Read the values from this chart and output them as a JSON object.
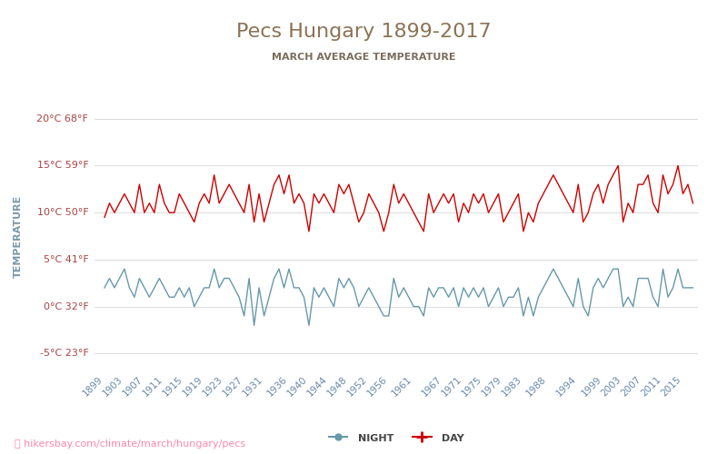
{
  "title": "Pecs Hungary 1899-2017",
  "subtitle": "MARCH AVERAGE TEMPERATURE",
  "ylabel": "TEMPERATURE",
  "watermark": "hikersbay.com/climate/march/hungary/pecs",
  "title_color": "#8B7355",
  "subtitle_color": "#7B6B5B",
  "day_color": "#CC0000",
  "night_color": "#6699AA",
  "background_color": "#FFFFFF",
  "grid_color": "#DDDDDD",
  "ylabel_color": "#7799AA",
  "tick_color": "#AA4444",
  "legend_day": "DAY",
  "legend_night": "NIGHT",
  "ylim": [
    -7,
    22
  ],
  "yticks_c": [
    -5,
    0,
    5,
    10,
    15,
    20
  ],
  "yticks_f": [
    23,
    32,
    41,
    50,
    59,
    68
  ],
  "x_labels": [
    1899,
    1903,
    1907,
    1911,
    1915,
    1919,
    1923,
    1927,
    1931,
    1936,
    1940,
    1944,
    1948,
    1952,
    1956,
    1961,
    1967,
    1971,
    1975,
    1979,
    1983,
    1988,
    1994,
    1999,
    2003,
    2007,
    2011,
    2015
  ],
  "years": [
    1899,
    1900,
    1901,
    1902,
    1903,
    1904,
    1905,
    1906,
    1907,
    1908,
    1909,
    1910,
    1911,
    1912,
    1913,
    1914,
    1915,
    1916,
    1917,
    1918,
    1919,
    1920,
    1921,
    1922,
    1923,
    1924,
    1925,
    1926,
    1927,
    1928,
    1929,
    1930,
    1931,
    1932,
    1933,
    1934,
    1935,
    1936,
    1937,
    1938,
    1939,
    1940,
    1941,
    1942,
    1943,
    1944,
    1945,
    1946,
    1947,
    1948,
    1949,
    1950,
    1951,
    1952,
    1953,
    1954,
    1955,
    1956,
    1957,
    1958,
    1959,
    1960,
    1961,
    1962,
    1963,
    1964,
    1965,
    1966,
    1967,
    1968,
    1969,
    1970,
    1971,
    1972,
    1973,
    1974,
    1975,
    1976,
    1977,
    1978,
    1979,
    1980,
    1981,
    1982,
    1983,
    1984,
    1985,
    1986,
    1987,
    1988,
    1989,
    1990,
    1991,
    1992,
    1993,
    1994,
    1995,
    1996,
    1997,
    1998,
    1999,
    2000,
    2001,
    2002,
    2003,
    2004,
    2005,
    2006,
    2007,
    2008,
    2009,
    2010,
    2011,
    2012,
    2013,
    2014,
    2015,
    2016,
    2017
  ],
  "day_values": [
    9.5,
    11,
    10,
    11,
    12,
    11,
    10,
    13,
    10,
    11,
    10,
    13,
    11,
    10,
    10,
    12,
    11,
    10,
    9,
    11,
    12,
    11,
    14,
    11,
    12,
    13,
    12,
    11,
    10,
    13,
    9,
    12,
    9,
    11,
    13,
    14,
    12,
    14,
    11,
    12,
    11,
    8,
    12,
    11,
    12,
    11,
    10,
    13,
    12,
    13,
    11,
    9,
    10,
    12,
    11,
    10,
    8,
    10,
    13,
    11,
    12,
    11,
    10,
    9,
    8,
    12,
    10,
    11,
    12,
    11,
    12,
    9,
    11,
    10,
    12,
    11,
    12,
    10,
    11,
    12,
    9,
    10,
    11,
    12,
    8,
    10,
    9,
    11,
    12,
    13,
    14,
    13,
    12,
    11,
    10,
    13,
    9,
    10,
    12,
    13,
    11,
    13,
    14,
    15,
    9,
    11,
    10,
    13,
    13,
    14,
    11,
    10,
    14,
    12,
    13,
    15,
    12,
    13,
    11
  ],
  "night_values": [
    2,
    3,
    2,
    3,
    4,
    2,
    1,
    3,
    2,
    1,
    2,
    3,
    2,
    1,
    1,
    2,
    1,
    2,
    0,
    1,
    2,
    2,
    4,
    2,
    3,
    3,
    2,
    1,
    -1,
    3,
    -2,
    2,
    -1,
    1,
    3,
    4,
    2,
    4,
    2,
    2,
    1,
    -2,
    2,
    1,
    2,
    1,
    0,
    3,
    2,
    3,
    2,
    0,
    1,
    2,
    1,
    0,
    -1,
    -1,
    3,
    1,
    2,
    1,
    0,
    0,
    -1,
    2,
    1,
    2,
    2,
    1,
    2,
    0,
    2,
    1,
    2,
    1,
    2,
    0,
    1,
    2,
    0,
    1,
    1,
    2,
    -1,
    1,
    -1,
    1,
    2,
    3,
    4,
    3,
    2,
    1,
    0,
    3,
    0,
    -1,
    2,
    3,
    2,
    3,
    4,
    4,
    0,
    1,
    0,
    3,
    3,
    3,
    1,
    0,
    4,
    1,
    2,
    4,
    2,
    2,
    2
  ]
}
